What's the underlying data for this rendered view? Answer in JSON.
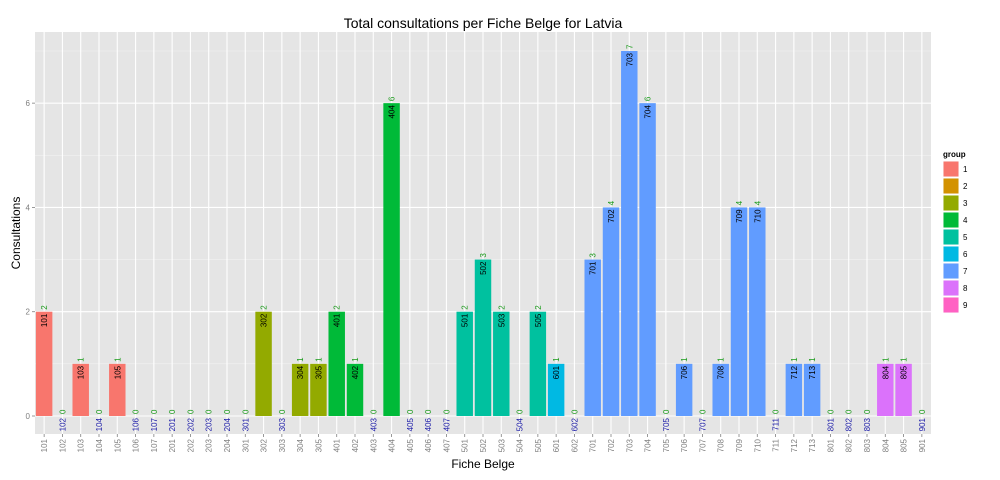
{
  "chart_data": {
    "type": "bar",
    "title": "Total consultations per Fiche Belge for Latvia",
    "xlabel": "Fiche Belge",
    "ylabel": "Consultations",
    "ylim": [
      0,
      7.3
    ],
    "yticks": [
      0,
      2,
      4,
      6
    ],
    "grid": true,
    "legend_title": "group",
    "legend_position": "right",
    "legend": [
      {
        "label": "1",
        "color": "#F8766D"
      },
      {
        "label": "2",
        "color": "#D39200"
      },
      {
        "label": "3",
        "color": "#93AA00"
      },
      {
        "label": "4",
        "color": "#00BA38"
      },
      {
        "label": "5",
        "color": "#00C19F"
      },
      {
        "label": "6",
        "color": "#00B9E3"
      },
      {
        "label": "7",
        "color": "#619CFF"
      },
      {
        "label": "8",
        "color": "#DB72FB"
      },
      {
        "label": "9",
        "color": "#FF61C3"
      }
    ],
    "categories": [
      "101",
      "102",
      "103",
      "104",
      "105",
      "106",
      "107",
      "201",
      "202",
      "203",
      "204",
      "301",
      "302",
      "303",
      "304",
      "305",
      "401",
      "402",
      "403",
      "404",
      "405",
      "406",
      "407",
      "501",
      "502",
      "503",
      "504",
      "505",
      "601",
      "602",
      "701",
      "702",
      "703",
      "704",
      "705",
      "706",
      "707",
      "708",
      "709",
      "710",
      "711",
      "712",
      "713",
      "801",
      "802",
      "803",
      "804",
      "805",
      "901"
    ],
    "values": [
      2,
      0,
      1,
      0,
      1,
      0,
      0,
      0,
      0,
      0,
      0,
      0,
      2,
      0,
      1,
      1,
      2,
      1,
      0,
      6,
      0,
      0,
      0,
      2,
      3,
      2,
      0,
      2,
      1,
      0,
      3,
      4,
      7,
      6,
      0,
      1,
      0,
      1,
      4,
      4,
      0,
      1,
      1,
      0,
      0,
      0,
      1,
      1,
      0
    ],
    "groups": [
      "1",
      "1",
      "1",
      "1",
      "1",
      "1",
      "1",
      "2",
      "2",
      "2",
      "2",
      "3",
      "3",
      "3",
      "3",
      "3",
      "4",
      "4",
      "4",
      "4",
      "4",
      "4",
      "4",
      "5",
      "5",
      "5",
      "5",
      "5",
      "6",
      "6",
      "7",
      "7",
      "7",
      "7",
      "7",
      "7",
      "7",
      "7",
      "7",
      "7",
      "7",
      "7",
      "7",
      "8",
      "8",
      "8",
      "8",
      "8",
      "9"
    ]
  }
}
